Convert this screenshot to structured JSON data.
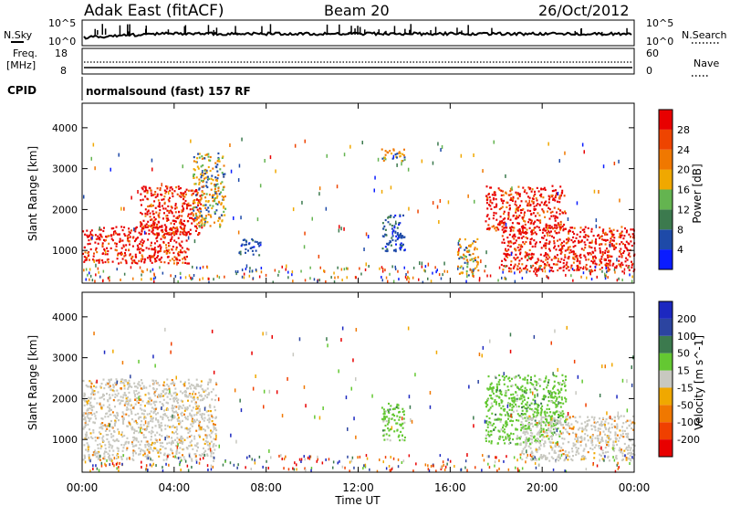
{
  "header": {
    "title": "Adak East (fitACF)",
    "beam": "Beam 20",
    "date": "26/Oct/2012"
  },
  "top_panel": {
    "left_label": "N.Sky",
    "right_label": "N.Search",
    "left_ticks": [
      "10^5",
      "10^0"
    ],
    "right_ticks": [
      "10^5",
      "10^0"
    ]
  },
  "freq_panel": {
    "left_label_line1": "Freq.",
    "left_label_line2": "[MHz]",
    "left_ticks": [
      "18",
      "8"
    ],
    "right_label": "Nave",
    "right_ticks": [
      "60",
      "0"
    ]
  },
  "cpid": {
    "label": "CPID",
    "value": "normalsound (fast) 157 RF"
  },
  "colors": {
    "power_scale": [
      "#0a1cff",
      "#1e4aa8",
      "#3c7a4e",
      "#64b450",
      "#f0a800",
      "#f07800",
      "#ee4400",
      "#e80000"
    ],
    "velocity_scale": [
      "#e80000",
      "#f04000",
      "#f07800",
      "#f0a800",
      "#c8c8c0",
      "#64c832",
      "#3c7a4e",
      "#2c44a0",
      "#1c28c0"
    ]
  },
  "chart_data": [
    {
      "type": "heatmap",
      "name": "power",
      "xlabel": "Time UT",
      "ylabel": "Slant Range [km]",
      "xlim": [
        0,
        24
      ],
      "ylim": [
        200,
        4600
      ],
      "yticks": [
        "1000",
        "2000",
        "3000",
        "4000"
      ],
      "colorbar_label": "Power [dB]",
      "colorbar_ticks": [
        "4",
        "8",
        "12",
        "16",
        "20",
        "24",
        "28"
      ],
      "regions": [
        {
          "t0": 0.0,
          "t1": 4.6,
          "r0": 700,
          "r1": 1600,
          "level": "high"
        },
        {
          "t0": 2.5,
          "t1": 5.2,
          "r0": 1400,
          "r1": 2600,
          "level": "high"
        },
        {
          "t0": 4.8,
          "t1": 6.2,
          "r0": 1600,
          "r1": 3400,
          "level": "mid"
        },
        {
          "t0": 6.8,
          "t1": 7.8,
          "r0": 900,
          "r1": 1300,
          "level": "low"
        },
        {
          "t0": 13.0,
          "t1": 14.0,
          "r0": 1000,
          "r1": 1900,
          "level": "low"
        },
        {
          "t0": 13.0,
          "t1": 14.0,
          "r0": 3200,
          "r1": 3500,
          "level": "mid"
        },
        {
          "t0": 16.3,
          "t1": 17.2,
          "r0": 400,
          "r1": 1300,
          "level": "mid"
        },
        {
          "t0": 18.2,
          "t1": 24.0,
          "r0": 500,
          "r1": 1600,
          "level": "high"
        },
        {
          "t0": 17.5,
          "t1": 21.0,
          "r0": 1500,
          "r1": 2600,
          "level": "high"
        }
      ]
    },
    {
      "type": "heatmap",
      "name": "velocity",
      "xlabel": "Time UT",
      "ylabel": "Slant Range [km]",
      "xlim": [
        0,
        24
      ],
      "ylim": [
        200,
        4600
      ],
      "xticks": [
        "00:00",
        "04:00",
        "08:00",
        "12:00",
        "16:00",
        "20:00",
        "00:00"
      ],
      "yticks": [
        "1000",
        "2000",
        "3000",
        "4000"
      ],
      "colorbar_label": "Velocity [m s^-1]",
      "colorbar_ticks": [
        "200",
        "100",
        "50",
        "15",
        "-15",
        "-50",
        "-100",
        "-200"
      ],
      "regions": [
        {
          "t0": 0.0,
          "t1": 5.8,
          "r0": 500,
          "r1": 2500,
          "level": "ground"
        },
        {
          "t0": 13.0,
          "t1": 14.0,
          "r0": 1000,
          "r1": 1900,
          "level": "positive"
        },
        {
          "t0": 17.5,
          "t1": 21.0,
          "r0": 900,
          "r1": 2600,
          "level": "positive"
        },
        {
          "t0": 19.0,
          "t1": 24.0,
          "r0": 500,
          "r1": 1600,
          "level": "ground"
        }
      ]
    }
  ]
}
